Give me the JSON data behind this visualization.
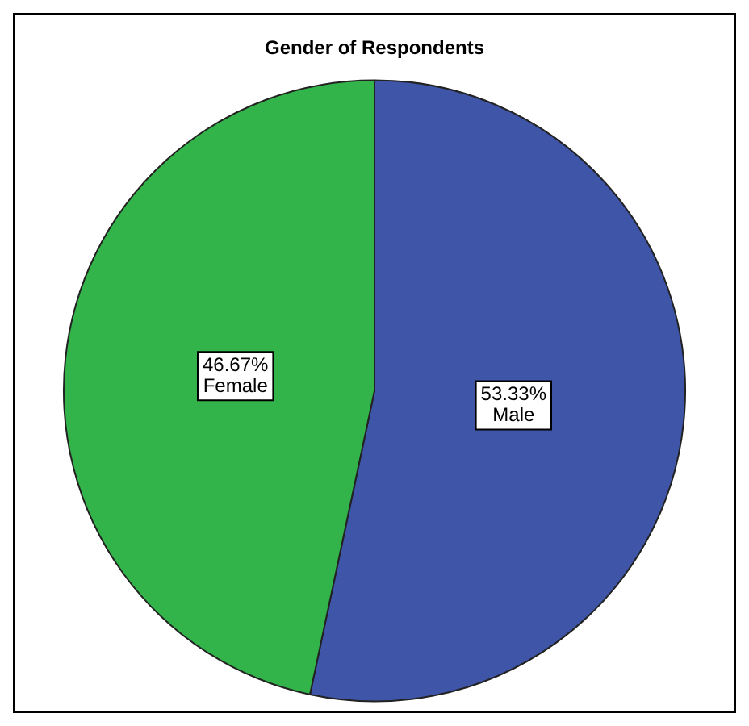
{
  "chart_data": {
    "type": "pie",
    "title": "Gender of Respondents",
    "categories": [
      "Male",
      "Female"
    ],
    "values": [
      53.33,
      46.67
    ],
    "colors": [
      "#3f56a8",
      "#33b44a"
    ],
    "value_labels": [
      "53.33%",
      "46.67%"
    ],
    "legend": false
  }
}
